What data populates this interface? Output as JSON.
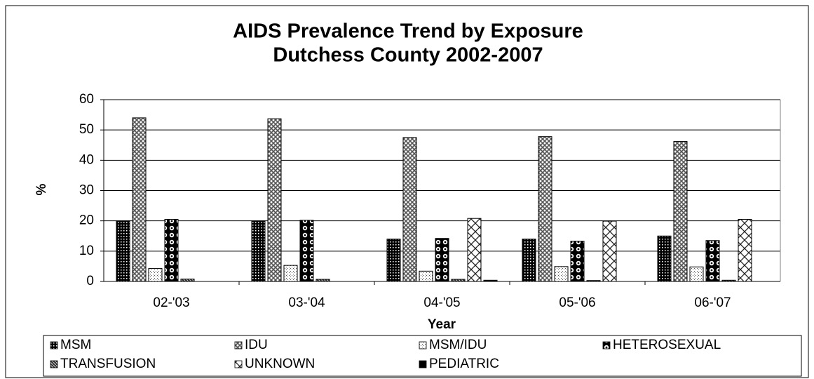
{
  "chart_data": {
    "type": "bar",
    "title": "AIDS Prevalence Trend by Exposure",
    "subtitle": "Dutchess County 2002-2007",
    "x_label": "Year",
    "y_label": "%",
    "categories": [
      "02-'03",
      "03-'04",
      "04-'05",
      "05-'06",
      "06-'07"
    ],
    "series": [
      {
        "name": "MSM",
        "values": [
          20,
          20,
          14,
          14,
          15
        ]
      },
      {
        "name": "IDU",
        "values": [
          54,
          53.7,
          47.5,
          47.8,
          46.2
        ]
      },
      {
        "name": "MSM/IDU",
        "values": [
          4.3,
          5.3,
          3.4,
          4.9,
          4.8
        ]
      },
      {
        "name": "HETEROSEXUAL",
        "values": [
          20.5,
          20.2,
          14.2,
          13.3,
          13.5
        ]
      },
      {
        "name": "TRANSFUSION",
        "values": [
          0.8,
          0.7,
          0.7,
          0.3,
          0.4
        ]
      },
      {
        "name": "UNKNOWN",
        "values": [
          0,
          0,
          20.8,
          19.9,
          20.5
        ]
      },
      {
        "name": "PEDIATRIC",
        "values": [
          0,
          0,
          0.4,
          0,
          0
        ]
      }
    ],
    "ylim": [
      0,
      60
    ],
    "yticks": [
      0,
      10,
      20,
      30,
      40,
      50,
      60
    ],
    "grid": true
  }
}
